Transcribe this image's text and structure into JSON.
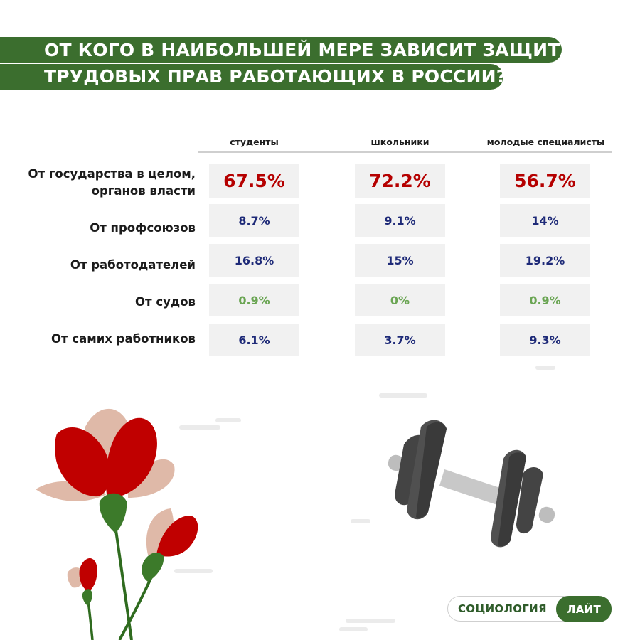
{
  "title": {
    "line1": "ОТ КОГО В НАИБОЛЬШЕЙ МЕРЕ ЗАВИСИТ ЗАЩИТА",
    "line2": "ТРУДОВЫХ ПРАВ РАБОТАЮЩИХ В РОССИИ?"
  },
  "colors": {
    "title_band": "#3b6e2e",
    "big_value": "#b50000",
    "value": "#1e2a78",
    "small_value": "#6aa553",
    "cell_bg": "#f1f1f1"
  },
  "chart_data": {
    "type": "table",
    "title": "ОТ КОГО В НАИБОЛЬШЕЙ МЕРЕ ЗАВИСИТ ЗАЩИТА ТРУДОВЫХ ПРАВ РАБОТАЮЩИХ В РОССИИ?",
    "columns": [
      "студенты",
      "школьники",
      "молодые специалисты"
    ],
    "rows": [
      {
        "label_lines": [
          "От государства в целом,",
          "органов власти"
        ],
        "values": [
          "67.5%",
          "72.2%",
          "56.7%"
        ],
        "style": "big"
      },
      {
        "label_lines": [
          "От профсоюзов"
        ],
        "values": [
          "8.7%",
          "9.1%",
          "14%"
        ],
        "style": "normal"
      },
      {
        "label_lines": [
          "От работодателей"
        ],
        "values": [
          "16.8%",
          "15%",
          "19.2%"
        ],
        "style": "normal"
      },
      {
        "label_lines": [
          "От судов"
        ],
        "values": [
          "0.9%",
          "0%",
          "0.9%"
        ],
        "style": "small"
      },
      {
        "label_lines": [
          "От самих работников"
        ],
        "values": [
          "6.1%",
          "3.7%",
          "9.3%"
        ],
        "style": "normal"
      }
    ]
  },
  "illustrations": {
    "left": "flowers-icon",
    "right": "dumbbell-icon"
  },
  "brand": {
    "left": "СОЦИОЛОГИЯ",
    "right": "ЛАЙТ"
  }
}
